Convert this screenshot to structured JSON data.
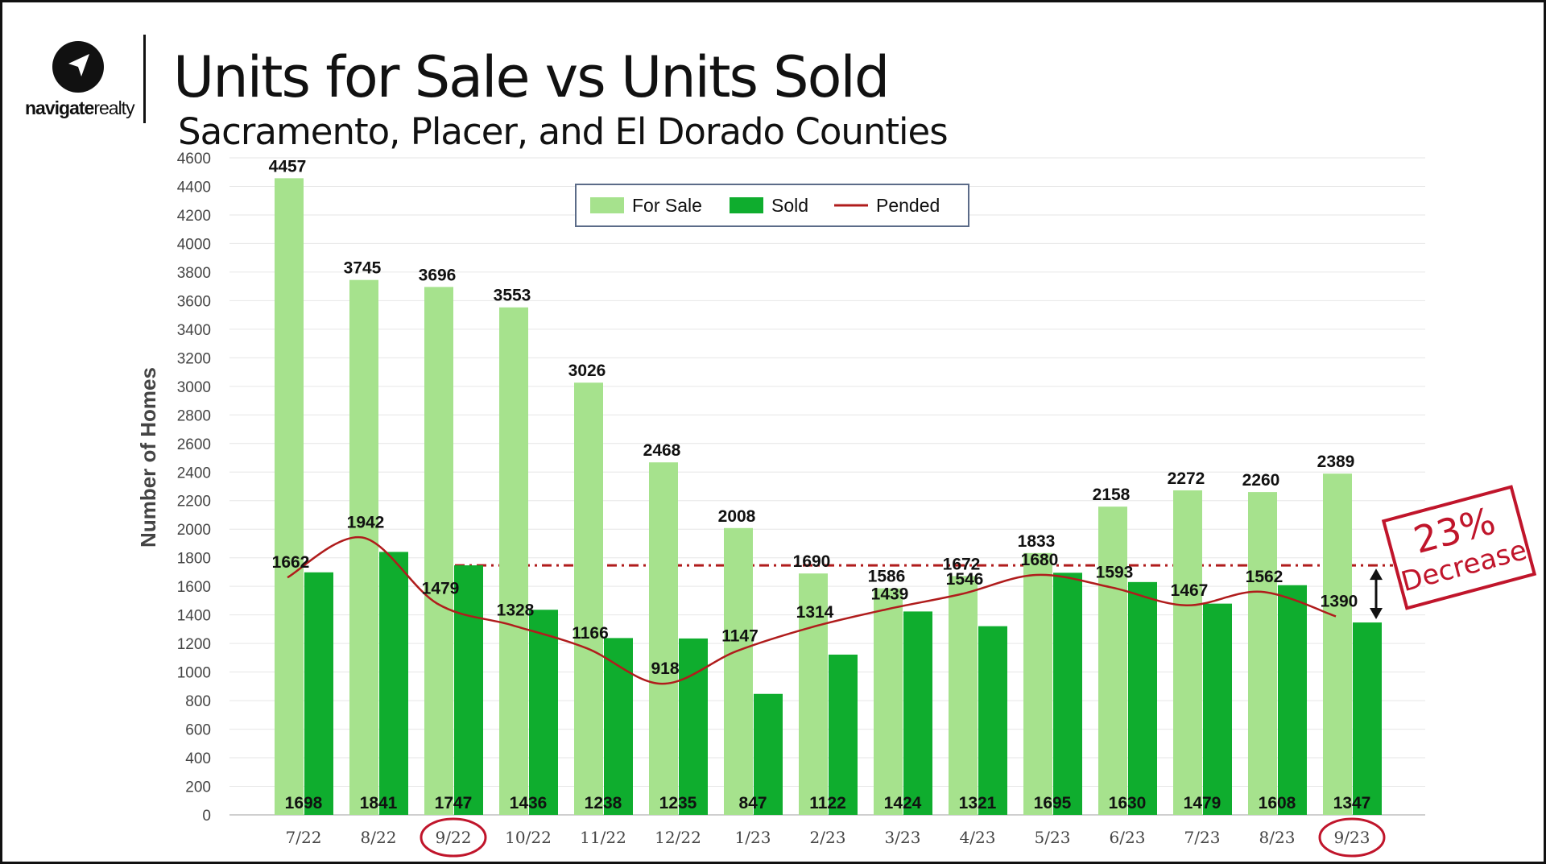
{
  "header": {
    "logo_text_bold": "navigate",
    "logo_text_light": "realty",
    "title": "Units for Sale vs Units Sold",
    "subtitle": "Sacramento, Placer, and El Dorado Counties"
  },
  "callout": {
    "percent": "23%",
    "word": "Decrease"
  },
  "colors": {
    "for_sale": "#a6e28d",
    "sold": "#0fad2e",
    "pended": "#b01c1c",
    "callout": "#c0152b",
    "grid": "#e6e6e6"
  },
  "chart_data": {
    "type": "bar",
    "title": "Units for Sale vs Units Sold",
    "ylabel": "Number of Homes",
    "xlabel": "",
    "ylim": [
      0,
      4600
    ],
    "ytick_step": 200,
    "grid": true,
    "legend_position": "top-center",
    "categories": [
      "7/22",
      "8/22",
      "9/22",
      "10/22",
      "11/22",
      "12/22",
      "1/23",
      "2/23",
      "3/23",
      "4/23",
      "5/23",
      "6/23",
      "7/23",
      "8/23",
      "9/23"
    ],
    "highlighted_categories": [
      "9/22",
      "9/23"
    ],
    "series": [
      {
        "name": "For Sale",
        "kind": "bar",
        "values": [
          4457,
          3745,
          3696,
          3553,
          3026,
          2468,
          2008,
          1690,
          1586,
          1672,
          1833,
          2158,
          2272,
          2260,
          2389
        ]
      },
      {
        "name": "Sold",
        "kind": "bar",
        "values": [
          1698,
          1841,
          1747,
          1436,
          1238,
          1235,
          847,
          1122,
          1424,
          1321,
          1695,
          1630,
          1479,
          1608,
          1347
        ]
      },
      {
        "name": "Pended",
        "kind": "line",
        "values": [
          1662,
          1942,
          1479,
          1328,
          1166,
          918,
          1147,
          1314,
          1439,
          1546,
          1680,
          1593,
          1467,
          1562,
          1390
        ]
      }
    ],
    "reference_line": {
      "value": 1747,
      "style": "dashed"
    }
  }
}
